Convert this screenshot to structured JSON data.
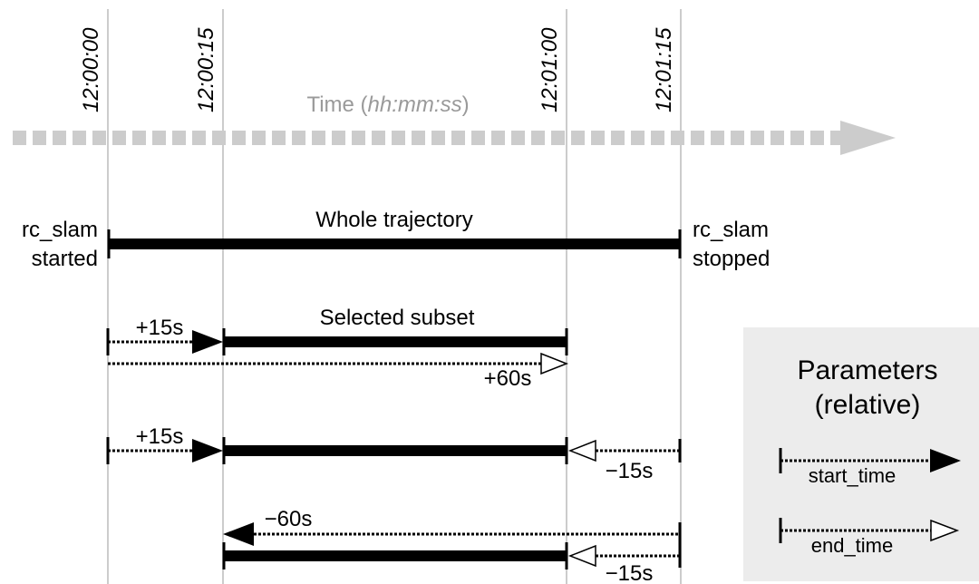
{
  "time_axis": {
    "title": "Time (",
    "title_unit": "hh:mm:ss",
    "title_close": ")",
    "ticks": [
      "12:00:00",
      "12:00:15",
      "12:01:00",
      "12:01:15"
    ]
  },
  "whole": {
    "title": "Whole trajectory",
    "start_label_1": "rc_slam",
    "start_label_2": "started",
    "stop_label_1": "rc_slam",
    "stop_label_2": "stopped"
  },
  "example1": {
    "title": "Selected subset",
    "start_offset": "+15s",
    "end_offset": "+60s"
  },
  "example2": {
    "start_offset": "+15s",
    "end_offset": "−15s"
  },
  "example3": {
    "start_offset": "−60s",
    "end_offset": "−15s"
  },
  "legend": {
    "title_1": "Parameters",
    "title_2": "(relative)",
    "start_label": "start_time",
    "end_label": "end_time"
  },
  "colors": {
    "axis": "#cccccc",
    "gridline": "#cccccc",
    "legend_bg": "#ececec",
    "bar": "#000000"
  }
}
